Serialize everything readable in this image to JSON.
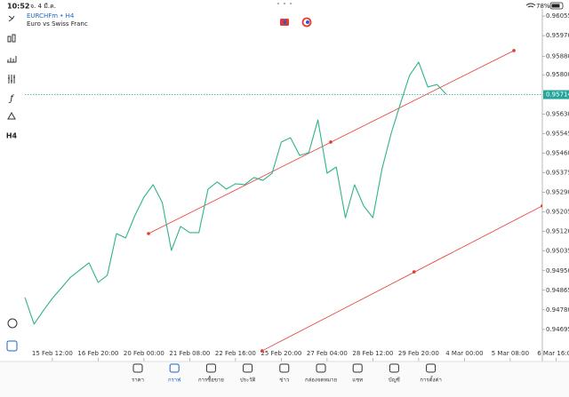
{
  "status_bar": {
    "time": "10:52",
    "date": "จ. 4 มี.ค.",
    "battery": "78%"
  },
  "symbol": {
    "name": "EURCHFm • H4",
    "description": "Euro vs Swiss Franc"
  },
  "toolbar": {
    "indicators": "ƒ",
    "timeframe": "H4"
  },
  "chart_data": {
    "type": "line",
    "categories": [
      null,
      null,
      null,
      "15 Feb 12:00",
      null,
      null,
      null,
      null,
      "16 Feb 20:00",
      null,
      null,
      null,
      null,
      "20 Feb 00:00",
      null,
      null,
      null,
      null,
      "21 Feb 08:00",
      null,
      null,
      null,
      null,
      "22 Feb 16:00",
      null,
      null,
      null,
      null,
      "25 Feb 20:00",
      null,
      null,
      null,
      null,
      "27 Feb 04:00",
      null,
      null,
      null,
      null,
      "28 Feb 12:00",
      null,
      null,
      null,
      null,
      "29 Feb 20:00",
      null,
      null,
      null,
      null,
      "4 Mar 00:00",
      null,
      null,
      null,
      null,
      "5 Mar 08:00",
      null,
      null,
      null,
      null,
      "6 Mar 16:00"
    ],
    "series": [
      {
        "color": "#2fb38a",
        "values": [
          0.94834,
          0.94718,
          0.94776,
          0.9483,
          0.94876,
          0.94922,
          0.94953,
          0.94984,
          0.94899,
          0.9493,
          0.95111,
          0.95092,
          0.95188,
          0.95269,
          0.95323,
          0.95246,
          0.95038,
          0.95142,
          0.95115,
          0.95115,
          0.95304,
          0.95335,
          0.95304,
          0.95327,
          0.95323,
          0.95354,
          0.95342,
          0.95373,
          0.95508,
          0.95527,
          0.9545,
          0.95462,
          0.95604,
          0.95373,
          0.954,
          0.9518,
          0.95323,
          0.95231,
          0.9518,
          0.95392,
          0.95546,
          0.95674,
          0.95797,
          0.95855,
          0.95747,
          0.95758,
          0.95716,
          null,
          null,
          null,
          null,
          null,
          null,
          null,
          null,
          null,
          null,
          null,
          null
        ]
      }
    ],
    "ylim": [
      0.94556,
      0.96086
    ],
    "yticks": [
      0.96055,
      {
        "value": 0.9597,
        "label": "0.95970"
      },
      {
        "value": 0.9588,
        "label": "0.95880"
      },
      {
        "value": 0.958,
        "label": "0.95800"
      },
      {
        "value": 0.9563,
        "label": "0.95630"
      },
      0.95545,
      {
        "value": 0.9546,
        "label": "0.95460"
      },
      0.95375,
      {
        "value": 0.9529,
        "label": "0.95290"
      },
      0.95205,
      {
        "value": 0.9512,
        "label": "0.95120"
      },
      0.95035,
      {
        "value": 0.9495,
        "label": "0.94950"
      },
      0.94865,
      {
        "value": 0.9478,
        "label": "0.94780"
      },
      0.94695
    ],
    "current_price": 0.95714,
    "current_price_color": "#26a69a",
    "channel": {
      "color": "#e53935",
      "upper": {
        "x": [
          13.5,
          53.4
        ],
        "y": [
          0.95111,
          0.95905
        ]
      },
      "middle_point": {
        "x": 33.4,
        "y": 0.95508
      },
      "lower": {
        "x": [
          25.9,
          56.5
        ],
        "y": [
          0.94602,
          0.95231
        ]
      },
      "lower_point": {
        "x": 42.5,
        "y": 0.94945
      }
    }
  },
  "nav": {
    "items": [
      "ราคา",
      "กราฟ",
      "การซื้อขาย",
      "ประวัติ",
      "ข่าว",
      "กล่องจดหมาย",
      "แชท",
      "บัญชี",
      "การตั้งค่า"
    ],
    "active": 1
  }
}
